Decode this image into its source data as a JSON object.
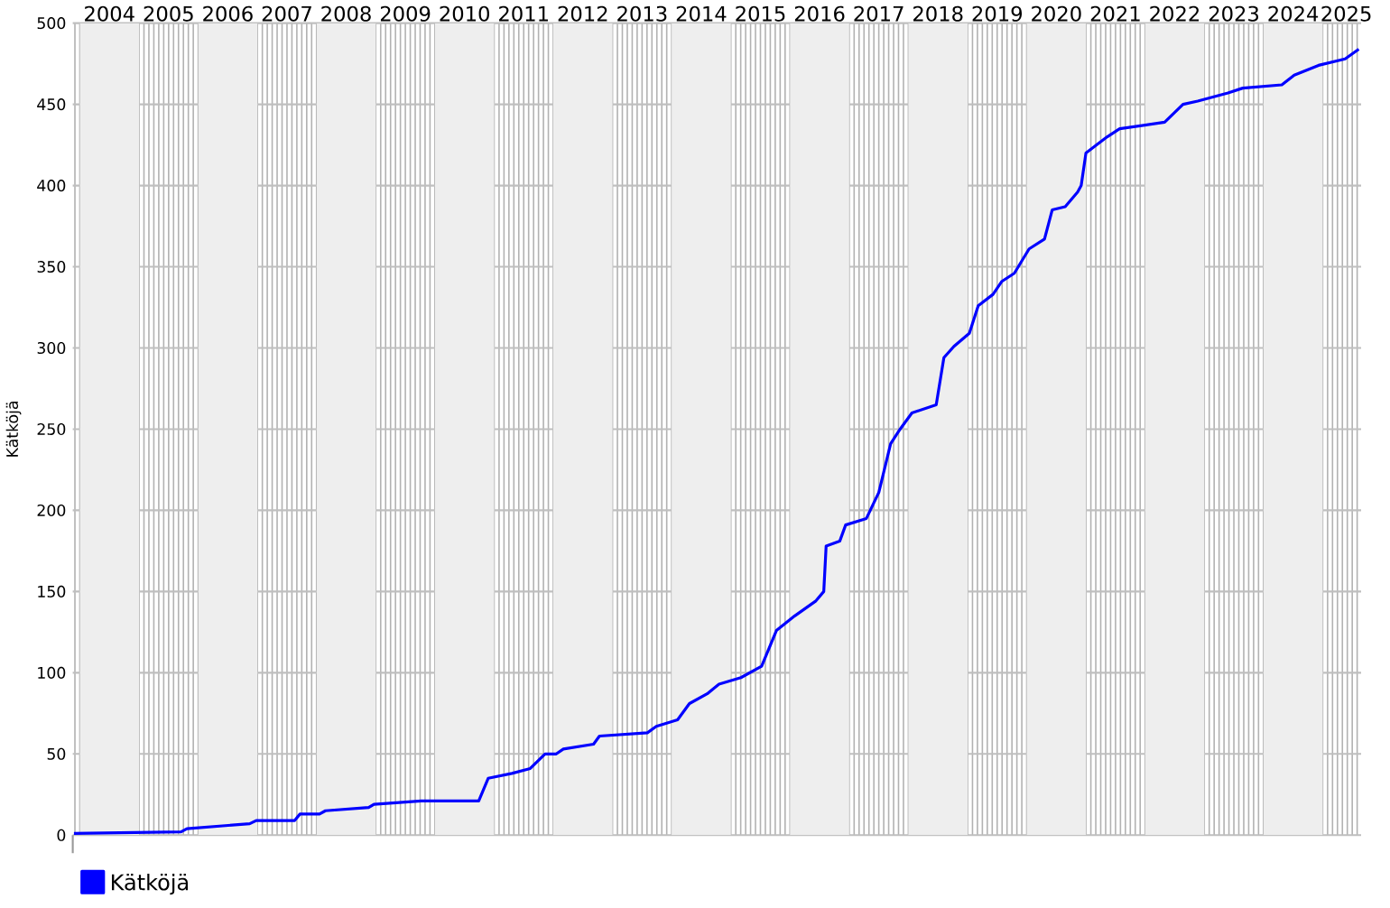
{
  "chart_data": {
    "type": "line",
    "ylabel": "Kätköjä",
    "x": [
      2003.9,
      2005.71,
      2005.81,
      2006.87,
      2006.98,
      2007.63,
      2007.72,
      2008.05,
      2008.15,
      2008.88,
      2008.97,
      2009.77,
      2010.74,
      2010.9,
      2011.3,
      2011.61,
      2011.86,
      2012.05,
      2012.17,
      2012.68,
      2012.78,
      2013.59,
      2013.74,
      2014.1,
      2014.3,
      2014.6,
      2014.8,
      2015.17,
      2015.52,
      2015.77,
      2016.08,
      2016.43,
      2016.57,
      2016.61,
      2016.84,
      2016.94,
      2017.29,
      2017.5,
      2017.7,
      2017.86,
      2018.06,
      2018.47,
      2018.6,
      2018.77,
      2019.03,
      2019.18,
      2019.43,
      2019.58,
      2019.79,
      2020.04,
      2020.3,
      2020.43,
      2020.65,
      2020.86,
      2020.92,
      2021.0,
      2021.36,
      2021.57,
      2022.33,
      2022.64,
      2022.89,
      2023.4,
      2023.65,
      2024.31,
      2024.52,
      2024.93,
      2025.38,
      2025.61
    ],
    "series": [
      {
        "name": "Kätköjä",
        "color": "#0000ff",
        "values": [
          1,
          2,
          4,
          7,
          9,
          9,
          13,
          13,
          15,
          17,
          19,
          21,
          21,
          35,
          38,
          41,
          50,
          50,
          53,
          56,
          61,
          63,
          67,
          71,
          81,
          87,
          93,
          97,
          104,
          126,
          135,
          144,
          150,
          178,
          181,
          191,
          195,
          211,
          241,
          250,
          260,
          265,
          294,
          301,
          309,
          326,
          333,
          341,
          346,
          361,
          367,
          385,
          387,
          396,
          400,
          420,
          430,
          435,
          439,
          450,
          452,
          457,
          460,
          462,
          468,
          474,
          478,
          484
        ]
      }
    ],
    "xlim": [
      2003.88,
      2025.65
    ],
    "xticks": [
      {
        "value": 2004.5,
        "label": "2004"
      },
      {
        "value": 2005.5,
        "label": "2005"
      },
      {
        "value": 2006.5,
        "label": "2006"
      },
      {
        "value": 2007.5,
        "label": "2007"
      },
      {
        "value": 2008.5,
        "label": "2008"
      },
      {
        "value": 2009.5,
        "label": "2009"
      },
      {
        "value": 2010.5,
        "label": "2010"
      },
      {
        "value": 2011.5,
        "label": "2011"
      },
      {
        "value": 2012.5,
        "label": "2012"
      },
      {
        "value": 2013.5,
        "label": "2013"
      },
      {
        "value": 2014.5,
        "label": "2014"
      },
      {
        "value": 2015.5,
        "label": "2015"
      },
      {
        "value": 2016.5,
        "label": "2016"
      },
      {
        "value": 2017.5,
        "label": "2017"
      },
      {
        "value": 2018.5,
        "label": "2018"
      },
      {
        "value": 2019.5,
        "label": "2019"
      },
      {
        "value": 2020.5,
        "label": "2020"
      },
      {
        "value": 2021.5,
        "label": "2021"
      },
      {
        "value": 2022.5,
        "label": "2022"
      },
      {
        "value": 2023.5,
        "label": "2023"
      },
      {
        "value": 2024.5,
        "label": "2024"
      },
      {
        "value": 2025.4,
        "label": "2025"
      }
    ],
    "ylim": [
      0,
      500
    ],
    "yticks": [
      0,
      50,
      100,
      150,
      200,
      250,
      300,
      350,
      400,
      450,
      500
    ],
    "bands": [
      {
        "axis": "x",
        "from": 2004,
        "to": 2005,
        "color": "#eeeeee"
      },
      {
        "axis": "x",
        "from": 2006,
        "to": 2007,
        "color": "#eeeeee"
      },
      {
        "axis": "x",
        "from": 2008,
        "to": 2009,
        "color": "#eeeeee"
      },
      {
        "axis": "x",
        "from": 2010,
        "to": 2011,
        "color": "#eeeeee"
      },
      {
        "axis": "x",
        "from": 2012,
        "to": 2013,
        "color": "#eeeeee"
      },
      {
        "axis": "x",
        "from": 2014,
        "to": 2015,
        "color": "#eeeeee"
      },
      {
        "axis": "x",
        "from": 2016,
        "to": 2017,
        "color": "#eeeeee"
      },
      {
        "axis": "x",
        "from": 2018,
        "to": 2019,
        "color": "#eeeeee"
      },
      {
        "axis": "x",
        "from": 2020,
        "to": 2021,
        "color": "#eeeeee"
      },
      {
        "axis": "x",
        "from": 2022,
        "to": 2023,
        "color": "#eeeeee"
      },
      {
        "axis": "x",
        "from": 2024,
        "to": 2025,
        "color": "#eeeeee"
      }
    ],
    "grid": true,
    "legend": "bottom left",
    "marker": "none",
    "line_style": "solid"
  }
}
